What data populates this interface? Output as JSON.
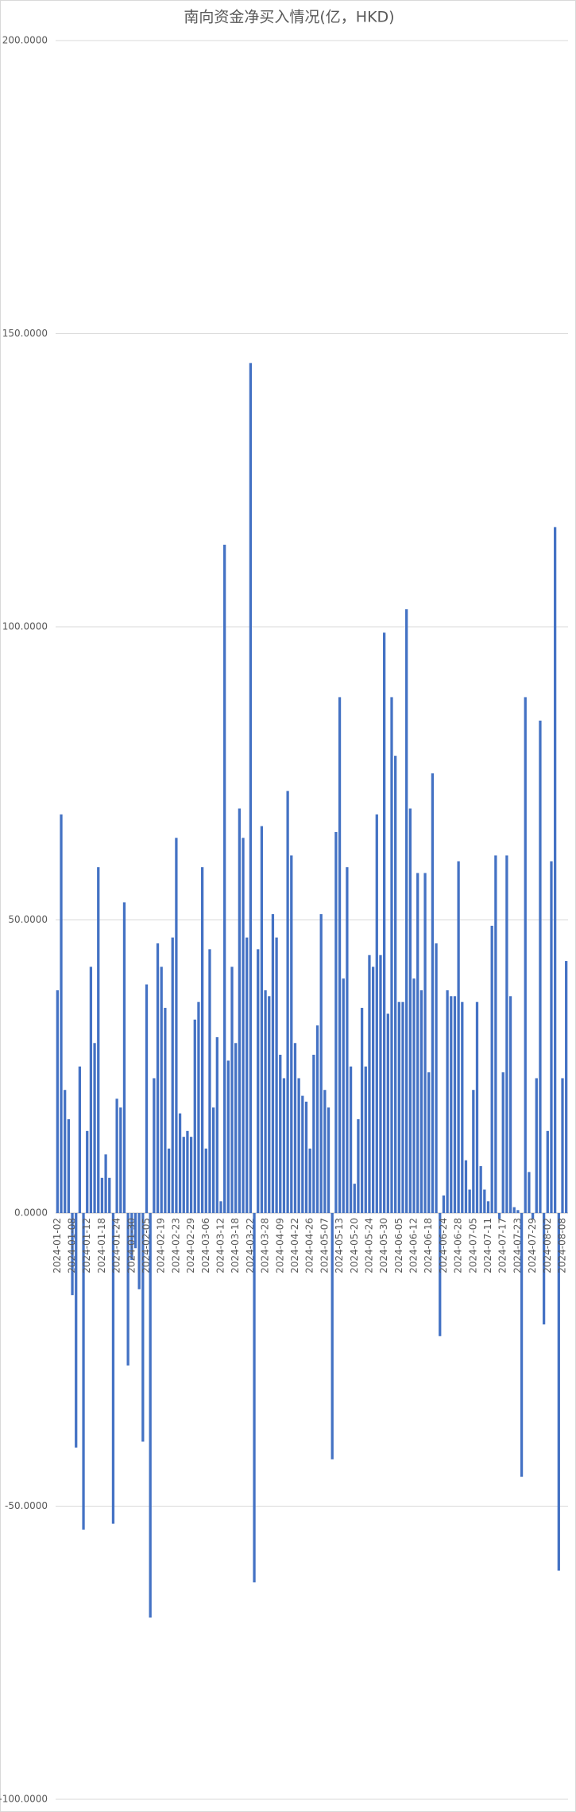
{
  "chart_data": {
    "type": "bar",
    "title": "南向资金净买入情况(亿，HKD)",
    "categories": [
      "2024-01-02",
      null,
      null,
      null,
      "2024-01-08",
      null,
      null,
      null,
      "2024-01-12",
      null,
      null,
      null,
      "2024-01-18",
      null,
      null,
      null,
      "2024-01-24",
      null,
      null,
      null,
      "2024-01-30",
      null,
      null,
      null,
      "2024-02-05",
      null,
      null,
      null,
      "2024-02-19",
      null,
      null,
      null,
      "2024-02-23",
      null,
      null,
      null,
      "2024-02-29",
      null,
      null,
      null,
      "2024-03-06",
      null,
      null,
      null,
      "2024-03-12",
      null,
      null,
      null,
      "2024-03-18",
      null,
      null,
      null,
      "2024-03-22",
      null,
      null,
      null,
      "2024-03-28",
      null,
      null,
      null,
      "2024-04-09",
      null,
      null,
      null,
      "2024-04-22",
      null,
      null,
      null,
      "2024-04-26",
      null,
      null,
      null,
      "2024-05-07",
      null,
      null,
      null,
      "2024-05-13",
      null,
      null,
      null,
      "2024-05-20",
      null,
      null,
      null,
      "2024-05-24",
      null,
      null,
      null,
      "2024-05-30",
      null,
      null,
      null,
      "2024-06-05",
      null,
      null,
      null,
      "2024-06-12",
      null,
      null,
      null,
      "2024-06-18",
      null,
      null,
      null,
      "2024-06-24",
      null,
      null,
      null,
      "2024-06-28",
      null,
      null,
      null,
      "2024-07-05",
      null,
      null,
      null,
      "2024-07-11",
      null,
      null,
      null,
      "2024-07-17",
      null,
      null,
      null,
      "2024-07-23",
      null,
      null,
      null,
      "2024-07-29",
      null,
      null,
      null,
      "2024-08-02",
      null,
      null,
      null,
      "2024-08-08",
      null
    ],
    "values": [
      38,
      68,
      21,
      16,
      -14,
      -40,
      25,
      -54,
      14,
      42,
      29,
      59,
      6,
      10,
      6,
      -53,
      19.5,
      18,
      53,
      -26,
      -8,
      -6,
      -13,
      -39,
      39,
      -69,
      23,
      46,
      42,
      35,
      11,
      47,
      64,
      17,
      13,
      14,
      13,
      33,
      36,
      59,
      11,
      45,
      18,
      30,
      2,
      114,
      26,
      42,
      29,
      69,
      64,
      47,
      145,
      -63,
      45,
      66,
      38,
      37,
      51,
      47,
      27,
      23,
      72,
      61,
      29,
      23,
      20,
      19,
      11,
      27,
      32,
      51,
      21,
      18,
      -42,
      65,
      88,
      40,
      59,
      25,
      5,
      16,
      35,
      25,
      44,
      42,
      68,
      44,
      99,
      34,
      88,
      78,
      36,
      36,
      103,
      69,
      40,
      58,
      38,
      58,
      24,
      75,
      46,
      -21,
      3,
      38,
      37,
      37,
      60,
      36,
      9,
      4,
      21,
      36,
      8,
      4,
      2,
      49,
      61,
      -1,
      24,
      61,
      37,
      1,
      0.5,
      -45,
      88,
      7,
      -1,
      23,
      84,
      -19,
      14,
      60,
      117,
      -61,
      23,
      43
    ],
    "color": "#4472c4",
    "ylim": [
      -100,
      200
    ],
    "yticks": [
      {
        "value": -100,
        "label": "-100.0000"
      },
      {
        "value": -50,
        "label": "-50.0000"
      },
      {
        "value": 0,
        "label": "0.0000"
      },
      {
        "value": 50,
        "label": "50.0000"
      },
      {
        "value": 100,
        "label": "100.0000"
      },
      {
        "value": 150,
        "label": "150.0000"
      },
      {
        "value": 200,
        "label": "200.0000"
      }
    ],
    "grid": true
  }
}
